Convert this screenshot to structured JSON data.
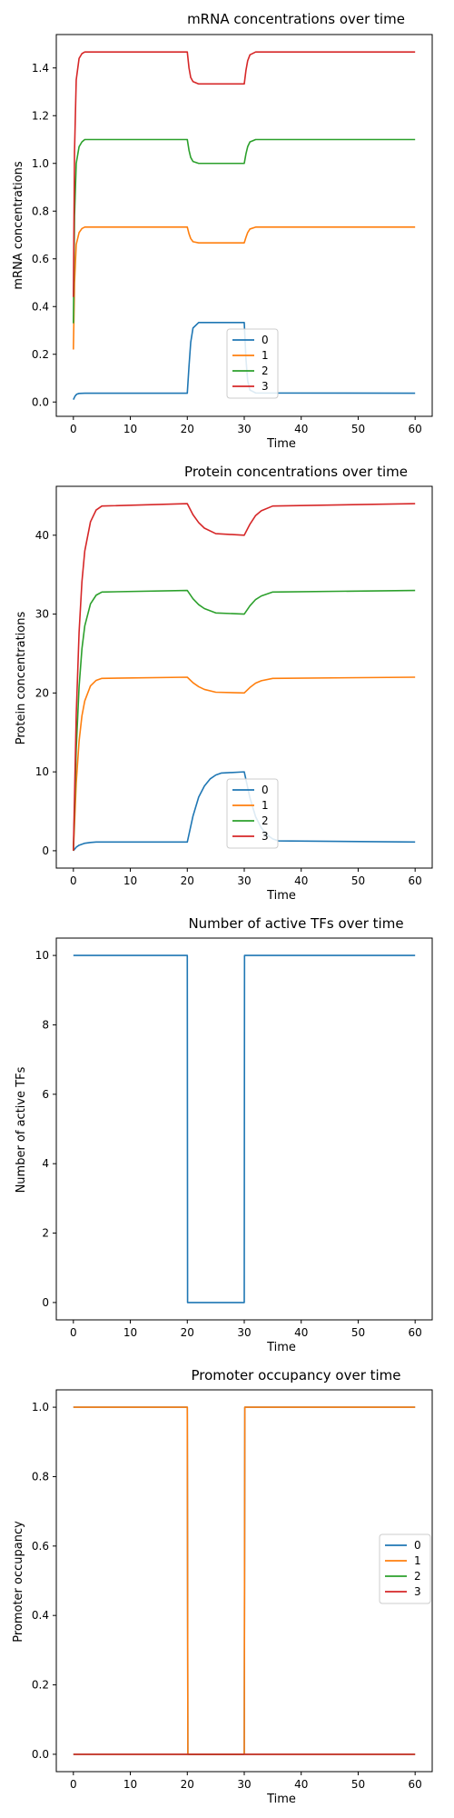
{
  "chart_data": [
    {
      "type": "line",
      "title": "mRNA concentrations over time",
      "xlabel": "Time",
      "ylabel": "mRNA concentrations",
      "xlim": [
        -3,
        63
      ],
      "ylim": [
        -0.06,
        1.54
      ],
      "xticks": [
        0,
        10,
        20,
        30,
        40,
        50,
        60
      ],
      "xtick_labels": [
        "0",
        "10",
        "20",
        "30",
        "40",
        "50",
        "60"
      ],
      "yticks": [
        0.0,
        0.2,
        0.4,
        0.6,
        0.8,
        1.0,
        1.2,
        1.4
      ],
      "ytick_labels": [
        "0.0",
        "0.2",
        "0.4",
        "0.6",
        "0.8",
        "1.0",
        "1.2",
        "1.4"
      ],
      "grid": false,
      "legend": {
        "placement": "lower-center",
        "entries": [
          "0",
          "1",
          "2",
          "3"
        ]
      },
      "series": [
        {
          "name": "0",
          "color": "#1f77b4",
          "x": [
            0,
            0.3,
            0.6,
            1,
            2,
            20,
            20.3,
            20.6,
            21,
            22,
            30,
            30.3,
            30.6,
            31,
            32,
            60
          ],
          "y": [
            0.01,
            0.025,
            0.033,
            0.036,
            0.037,
            0.037,
            0.15,
            0.25,
            0.31,
            0.333,
            0.333,
            0.18,
            0.09,
            0.05,
            0.038,
            0.037
          ]
        },
        {
          "name": "1",
          "color": "#ff7f0e",
          "x": [
            0,
            0.2,
            0.5,
            1,
            1.5,
            2,
            20,
            20.3,
            20.6,
            21,
            22,
            30,
            30.3,
            30.6,
            31,
            32,
            60
          ],
          "y": [
            0.22,
            0.5,
            0.66,
            0.71,
            0.727,
            0.733,
            0.733,
            0.705,
            0.685,
            0.672,
            0.667,
            0.667,
            0.69,
            0.71,
            0.725,
            0.733,
            0.733
          ]
        },
        {
          "name": "2",
          "color": "#2ca02c",
          "x": [
            0,
            0.2,
            0.5,
            1,
            1.5,
            2,
            20,
            20.3,
            20.6,
            21,
            22,
            30,
            30.3,
            30.6,
            31,
            32,
            60
          ],
          "y": [
            0.33,
            0.78,
            1.0,
            1.07,
            1.09,
            1.1,
            1.1,
            1.055,
            1.025,
            1.008,
            1.0,
            1.0,
            1.04,
            1.07,
            1.09,
            1.1,
            1.1
          ]
        },
        {
          "name": "3",
          "color": "#d62728",
          "x": [
            0,
            0.2,
            0.5,
            1,
            1.5,
            2,
            20,
            20.3,
            20.6,
            21,
            22,
            30,
            30.3,
            30.6,
            31,
            32,
            60
          ],
          "y": [
            0.44,
            1.05,
            1.35,
            1.44,
            1.46,
            1.467,
            1.467,
            1.4,
            1.36,
            1.343,
            1.333,
            1.333,
            1.39,
            1.43,
            1.455,
            1.467,
            1.467
          ]
        }
      ]
    },
    {
      "type": "line",
      "title": "Protein concentrations over time",
      "xlabel": "Time",
      "ylabel": "Protein concentrations",
      "xlim": [
        -3,
        63
      ],
      "ylim": [
        -2.2,
        46.2
      ],
      "xticks": [
        0,
        10,
        20,
        30,
        40,
        50,
        60
      ],
      "xtick_labels": [
        "0",
        "10",
        "20",
        "30",
        "40",
        "50",
        "60"
      ],
      "yticks": [
        0,
        10,
        20,
        30,
        40
      ],
      "ytick_labels": [
        "0",
        "10",
        "20",
        "30",
        "40"
      ],
      "grid": false,
      "legend": {
        "placement": "lower-center",
        "entries": [
          "0",
          "1",
          "2",
          "3"
        ]
      },
      "series": [
        {
          "name": "0",
          "color": "#1f77b4",
          "x": [
            0,
            0.5,
            1,
            2,
            3,
            4,
            20,
            21,
            22,
            23,
            24,
            25,
            26,
            30,
            31,
            32,
            33,
            34,
            35,
            36,
            60
          ],
          "y": [
            0,
            0.45,
            0.7,
            0.95,
            1.05,
            1.1,
            1.1,
            4.4,
            6.8,
            8.2,
            9.1,
            9.6,
            9.85,
            10.0,
            6.7,
            4.3,
            2.9,
            2.0,
            1.5,
            1.25,
            1.1
          ]
        },
        {
          "name": "1",
          "color": "#ff7f0e",
          "x": [
            0,
            0.5,
            1,
            1.5,
            2,
            3,
            4,
            5,
            20,
            21,
            22,
            23,
            25,
            30,
            31,
            32,
            33,
            35,
            60
          ],
          "y": [
            0,
            8.6,
            13.9,
            17.1,
            19.0,
            20.9,
            21.6,
            21.85,
            22.0,
            21.3,
            20.8,
            20.45,
            20.1,
            20.0,
            20.7,
            21.25,
            21.55,
            21.85,
            22.0
          ]
        },
        {
          "name": "2",
          "color": "#2ca02c",
          "x": [
            0,
            0.5,
            1,
            1.5,
            2,
            3,
            4,
            5,
            20,
            21,
            22,
            23,
            25,
            30,
            31,
            32,
            33,
            35,
            60
          ],
          "y": [
            0,
            12.9,
            20.8,
            25.6,
            28.5,
            31.3,
            32.4,
            32.8,
            33.0,
            31.95,
            31.2,
            30.7,
            30.15,
            30.0,
            31.05,
            31.85,
            32.3,
            32.8,
            33.0
          ]
        },
        {
          "name": "3",
          "color": "#d62728",
          "x": [
            0,
            0.5,
            1,
            1.5,
            2,
            3,
            4,
            5,
            20,
            21,
            22,
            23,
            25,
            30,
            31,
            32,
            33,
            35,
            60
          ],
          "y": [
            0,
            17.2,
            27.7,
            34.1,
            38.0,
            41.7,
            43.2,
            43.7,
            44.0,
            42.6,
            41.6,
            40.9,
            40.2,
            40.0,
            41.4,
            42.5,
            43.1,
            43.7,
            44.0
          ]
        }
      ]
    },
    {
      "type": "line",
      "title": "Number of active TFs over time",
      "xlabel": "Time",
      "ylabel": "Number of active TFs",
      "xlim": [
        -3,
        63
      ],
      "ylim": [
        -0.5,
        10.5
      ],
      "xticks": [
        0,
        10,
        20,
        30,
        40,
        50,
        60
      ],
      "xtick_labels": [
        "0",
        "10",
        "20",
        "30",
        "40",
        "50",
        "60"
      ],
      "yticks": [
        0,
        2,
        4,
        6,
        8,
        10
      ],
      "ytick_labels": [
        "0",
        "2",
        "4",
        "6",
        "8",
        "10"
      ],
      "grid": false,
      "legend": null,
      "series": [
        {
          "color": "#1f77b4",
          "x": [
            0,
            20,
            20.05,
            30,
            30.05,
            60
          ],
          "y": [
            10,
            10,
            0,
            0,
            10,
            10
          ]
        }
      ]
    },
    {
      "type": "line",
      "title": "Promoter occupancy over time",
      "xlabel": "Time",
      "ylabel": "Promoter occupancy",
      "xlim": [
        -3,
        63
      ],
      "ylim": [
        -0.05,
        1.05
      ],
      "xticks": [
        0,
        10,
        20,
        30,
        40,
        50,
        60
      ],
      "xtick_labels": [
        "0",
        "10",
        "20",
        "30",
        "40",
        "50",
        "60"
      ],
      "yticks": [
        0.0,
        0.2,
        0.4,
        0.6,
        0.8,
        1.0
      ],
      "ytick_labels": [
        "0.0",
        "0.2",
        "0.4",
        "0.6",
        "0.8",
        "1.0"
      ],
      "grid": false,
      "legend": {
        "placement": "center-right",
        "entries": [
          "0",
          "1",
          "2",
          "3"
        ]
      },
      "series": [
        {
          "name": "0",
          "color": "#1f77b4",
          "x": [
            0,
            20,
            20.1,
            30,
            30.1,
            60
          ],
          "y": [
            1.0,
            1.0,
            0.0,
            0.0,
            1.0,
            1.0
          ]
        },
        {
          "name": "1",
          "color": "#ff7f0e",
          "x": [
            0,
            20,
            20.1,
            30,
            30.1,
            60
          ],
          "y": [
            1.0,
            1.0,
            0.0,
            0.0,
            1.0,
            1.0
          ]
        },
        {
          "name": "2",
          "color": "#2ca02c",
          "x": [
            0,
            60
          ],
          "y": [
            0.0,
            0.0
          ]
        },
        {
          "name": "3",
          "color": "#d62728",
          "x": [
            0,
            60
          ],
          "y": [
            0.0,
            0.0
          ]
        }
      ]
    }
  ]
}
